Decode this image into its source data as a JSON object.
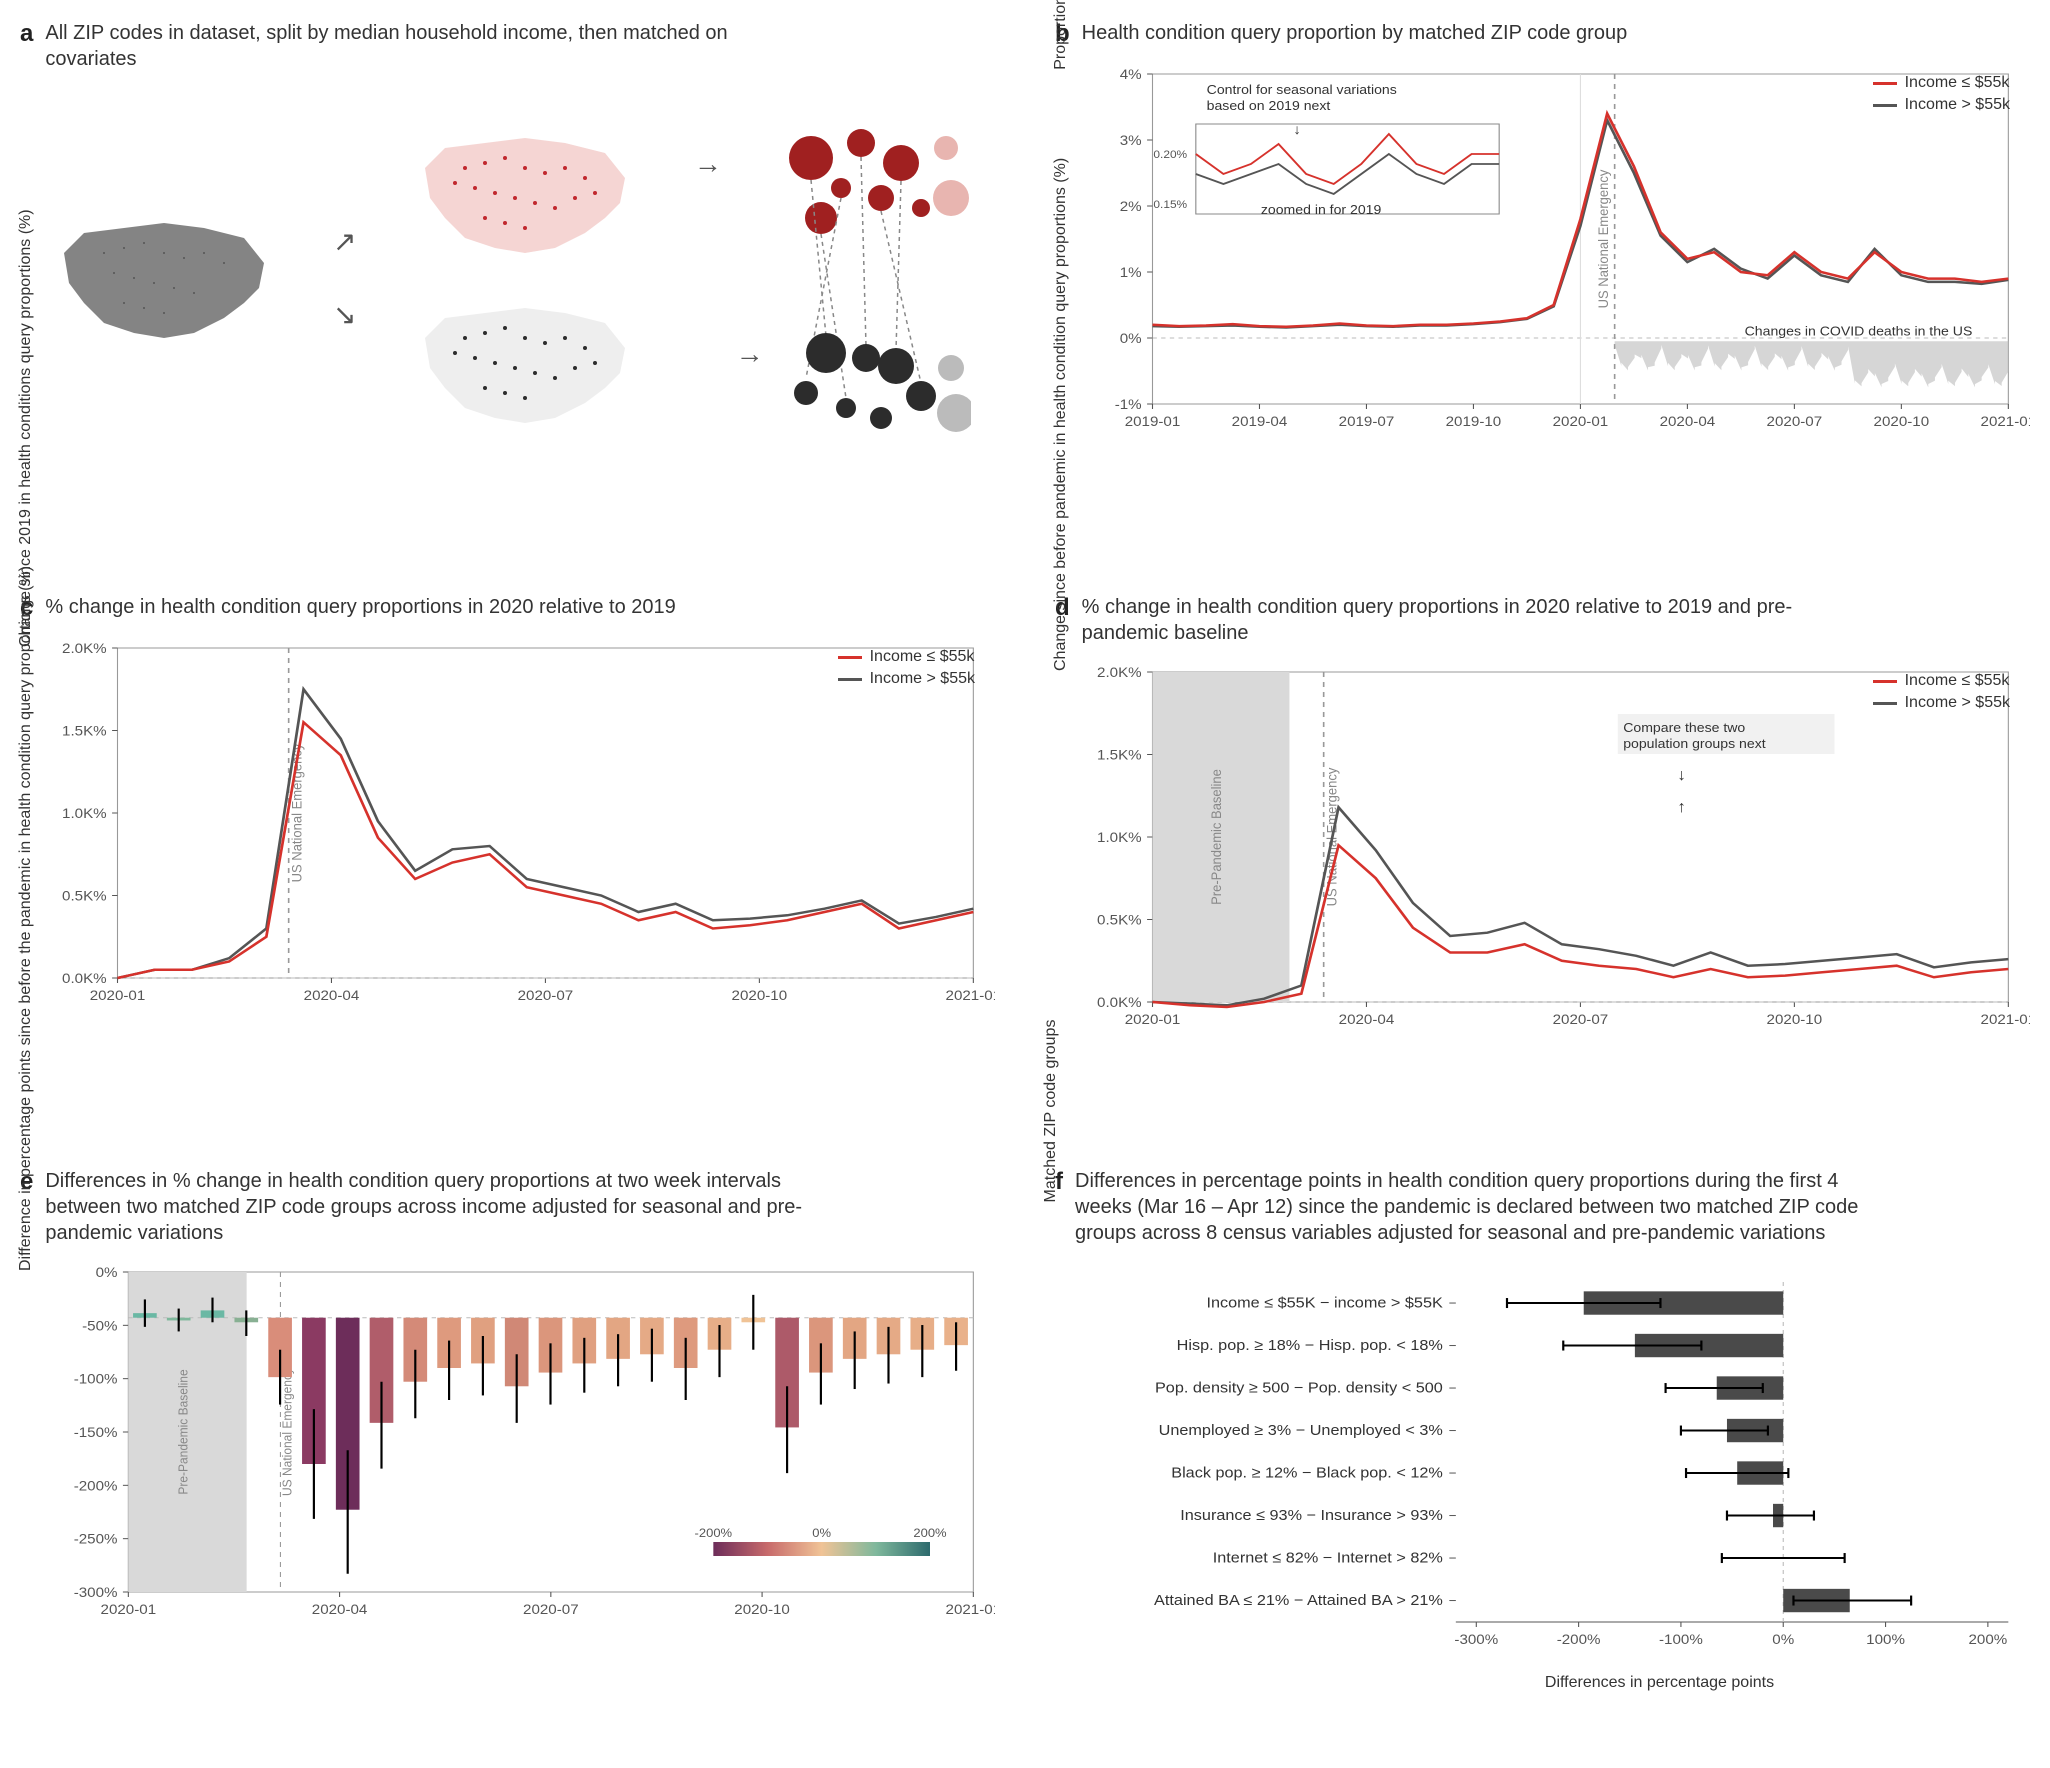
{
  "colors": {
    "red": "#d6322c",
    "gray": "#555555",
    "lightGray": "#cccccc",
    "gridline": "#e0e0e0",
    "dashed": "#aaaaaa",
    "band": "#d9d9d9",
    "axis": "#333333",
    "pink": "#e8b5b0",
    "darkGray": "#3a3a3a",
    "mapGray": "#777777",
    "mapRed": "#c1272d",
    "mapBlack": "#2c2c2c"
  },
  "legend": {
    "low": "Income ≤ $55k",
    "high": "Income > $55k"
  },
  "panelA": {
    "letter": "a",
    "title": "All ZIP codes in dataset, split by median household income, then matched on covariates"
  },
  "panelB": {
    "letter": "b",
    "title": "Health condition query proportion by matched ZIP code group",
    "ylabel": "Proportion of queries related to\nhealth conditions (%)",
    "yticks": [
      "-1%",
      "0%",
      "1%",
      "2%",
      "3%",
      "4%"
    ],
    "ylim": [
      -1,
      4
    ],
    "xticks": [
      "2019-01",
      "2019-04",
      "2019-07",
      "2019-10",
      "2020-01",
      "2020-04",
      "2020-07",
      "2020-10",
      "2021-01"
    ],
    "annotation1": "Control for seasonal variations\nbased on 2019 next",
    "annotation2": "zoomed in for 2019",
    "insetYticks": [
      "0.15%",
      "0.20%"
    ],
    "emergencyLabel": "US National Emergency",
    "deathsLabel": "Changes in COVID deaths in the US",
    "series": {
      "red": [
        0.2,
        0.18,
        0.19,
        0.21,
        0.18,
        0.17,
        0.19,
        0.22,
        0.19,
        0.18,
        0.2,
        0.2,
        0.22,
        0.25,
        0.3,
        0.5,
        1.8,
        3.4,
        2.6,
        1.6,
        1.2,
        1.3,
        1.0,
        0.95,
        1.3,
        1.0,
        0.9,
        1.3,
        1.0,
        0.9,
        0.9,
        0.85,
        0.9
      ],
      "gray": [
        0.18,
        0.17,
        0.18,
        0.19,
        0.17,
        0.16,
        0.18,
        0.2,
        0.18,
        0.17,
        0.19,
        0.19,
        0.21,
        0.24,
        0.29,
        0.48,
        1.7,
        3.3,
        2.5,
        1.55,
        1.15,
        1.35,
        1.05,
        0.9,
        1.25,
        0.95,
        0.85,
        1.35,
        0.95,
        0.85,
        0.85,
        0.82,
        0.88
      ]
    }
  },
  "panelC": {
    "letter": "c",
    "title": "% change in health condition query proportions in 2020 relative to 2019",
    "ylabel": "Change since 2019 in\nhealth conditions query proportions (%)",
    "yticks": [
      "0.0K%",
      "0.5K%",
      "1.0K%",
      "1.5K%",
      "2.0K%"
    ],
    "ylim": [
      0,
      2.0
    ],
    "xticks": [
      "2020-01",
      "2020-04",
      "2020-07",
      "2020-10",
      "2021-01"
    ],
    "emergencyLabel": "US National Emergency",
    "series": {
      "red": [
        0.0,
        0.05,
        0.05,
        0.1,
        0.25,
        1.55,
        1.35,
        0.85,
        0.6,
        0.7,
        0.75,
        0.55,
        0.5,
        0.45,
        0.35,
        0.4,
        0.3,
        0.32,
        0.35,
        0.4,
        0.45,
        0.3,
        0.35,
        0.4
      ],
      "gray": [
        0.0,
        0.05,
        0.05,
        0.12,
        0.3,
        1.75,
        1.45,
        0.95,
        0.65,
        0.78,
        0.8,
        0.6,
        0.55,
        0.5,
        0.4,
        0.45,
        0.35,
        0.36,
        0.38,
        0.42,
        0.47,
        0.33,
        0.37,
        0.42
      ]
    }
  },
  "panelD": {
    "letter": "d",
    "title": "% change in health condition query proportions in 2020 relative to 2019 and pre-pandemic baseline",
    "ylabel": "Change since before pandemic in\nhealth condition query proportions (%)",
    "yticks": [
      "0.0K%",
      "0.5K%",
      "1.0K%",
      "1.5K%",
      "2.0K%"
    ],
    "ylim": [
      0,
      2.0
    ],
    "xticks": [
      "2020-01",
      "2020-04",
      "2020-07",
      "2020-10",
      "2021-01"
    ],
    "emergencyLabel": "US National Emergency",
    "baselineLabel": "Pre-Pandemic Baseline",
    "annotation": "Compare these two\npopulation groups next",
    "series": {
      "red": [
        0.0,
        -0.02,
        -0.03,
        0.0,
        0.05,
        0.95,
        0.75,
        0.45,
        0.3,
        0.3,
        0.35,
        0.25,
        0.22,
        0.2,
        0.15,
        0.2,
        0.15,
        0.16,
        0.18,
        0.2,
        0.22,
        0.15,
        0.18,
        0.2
      ],
      "gray": [
        0.0,
        -0.01,
        -0.02,
        0.02,
        0.1,
        1.18,
        0.92,
        0.6,
        0.4,
        0.42,
        0.48,
        0.35,
        0.32,
        0.28,
        0.22,
        0.3,
        0.22,
        0.23,
        0.25,
        0.27,
        0.29,
        0.21,
        0.24,
        0.26
      ]
    }
  },
  "panelE": {
    "letter": "e",
    "title": "Differences in % change in health condition query proportions at two week intervals between two matched ZIP code groups across income adjusted for seasonal and pre-pandemic variations",
    "ylabel": "Difference in percentage points\nsince before the pandemic\nin health condition query proportions (%)",
    "yticks": [
      "-300%",
      "-250%",
      "-200%",
      "-150%",
      "-100%",
      "-50%",
      "0%"
    ],
    "ylim": [
      -300,
      50
    ],
    "xticks": [
      "2020-01",
      "2020-04",
      "2020-07",
      "2020-10",
      "2021-01"
    ],
    "emergencyLabel": "US National Emergency",
    "baselineLabel": "Pre-Pandemic Baseline",
    "colorbarTicks": [
      "-200%",
      "0%",
      "200%"
    ],
    "bars": [
      {
        "x": 0,
        "val": 5,
        "lo": -10,
        "hi": 20,
        "color": "#6ab8a4"
      },
      {
        "x": 1,
        "val": -3,
        "lo": -15,
        "hi": 10,
        "color": "#7fb89c"
      },
      {
        "x": 2,
        "val": 8,
        "lo": -5,
        "hi": 22,
        "color": "#6ab8a4"
      },
      {
        "x": 3,
        "val": -5,
        "lo": -20,
        "hi": 8,
        "color": "#88b093"
      },
      {
        "x": 4,
        "val": -65,
        "lo": -95,
        "hi": -35,
        "color": "#d98d7a"
      },
      {
        "x": 5,
        "val": -160,
        "lo": -220,
        "hi": -100,
        "color": "#8b3a62"
      },
      {
        "x": 6,
        "val": -210,
        "lo": -280,
        "hi": -145,
        "color": "#6d2d5a"
      },
      {
        "x": 7,
        "val": -115,
        "lo": -165,
        "hi": -70,
        "color": "#b05d6a"
      },
      {
        "x": 8,
        "val": -70,
        "lo": -110,
        "hi": -35,
        "color": "#d48a78"
      },
      {
        "x": 9,
        "val": -55,
        "lo": -90,
        "hi": -25,
        "color": "#de9a7e"
      },
      {
        "x": 10,
        "val": -50,
        "lo": -85,
        "hi": -20,
        "color": "#e0a080"
      },
      {
        "x": 11,
        "val": -75,
        "lo": -115,
        "hi": -40,
        "color": "#d08876"
      },
      {
        "x": 12,
        "val": -60,
        "lo": -95,
        "hi": -28,
        "color": "#db967c"
      },
      {
        "x": 13,
        "val": -50,
        "lo": -82,
        "hi": -22,
        "color": "#e0a080"
      },
      {
        "x": 14,
        "val": -45,
        "lo": -75,
        "hi": -18,
        "color": "#e3a683"
      },
      {
        "x": 15,
        "val": -40,
        "lo": -70,
        "hi": -12,
        "color": "#e5aa86"
      },
      {
        "x": 16,
        "val": -55,
        "lo": -90,
        "hi": -22,
        "color": "#de9a7e"
      },
      {
        "x": 17,
        "val": -35,
        "lo": -65,
        "hi": -8,
        "color": "#e7ae88"
      },
      {
        "x": 18,
        "val": -5,
        "lo": -35,
        "hi": 25,
        "color": "#f0c396"
      },
      {
        "x": 19,
        "val": -120,
        "lo": -170,
        "hi": -75,
        "color": "#ad5a69"
      },
      {
        "x": 20,
        "val": -60,
        "lo": -95,
        "hi": -28,
        "color": "#db967c"
      },
      {
        "x": 21,
        "val": -45,
        "lo": -78,
        "hi": -15,
        "color": "#e3a683"
      },
      {
        "x": 22,
        "val": -40,
        "lo": -72,
        "hi": -10,
        "color": "#e5aa86"
      },
      {
        "x": 23,
        "val": -35,
        "lo": -65,
        "hi": -8,
        "color": "#e7ae88"
      },
      {
        "x": 24,
        "val": -30,
        "lo": -58,
        "hi": -5,
        "color": "#e9b18a"
      }
    ]
  },
  "panelF": {
    "letter": "f",
    "title": "Differences in percentage points in health condition query proportions during the first 4 weeks (Mar 16 – Apr 12) since the pandemic is declared between two matched ZIP code groups across 8 census variables adjusted for seasonal and pre-pandemic variations",
    "xlabel": "Differences in percentage points",
    "ylabel": "Matched ZIP code groups",
    "xticks": [
      "-300%",
      "-200%",
      "-100%",
      "0%",
      "100%",
      "200%"
    ],
    "xlim": [
      -320,
      220
    ],
    "categories": [
      {
        "label": "Income ≤ $55K − income > $55K",
        "val": -195,
        "lo": -270,
        "hi": -120
      },
      {
        "label": "Hisp. pop. ≥ 18% − Hisp. pop. < 18%",
        "val": -145,
        "lo": -215,
        "hi": -80
      },
      {
        "label": "Pop. density ≥ 500 − Pop. density < 500",
        "val": -65,
        "lo": -115,
        "hi": -20
      },
      {
        "label": "Unemployed ≥ 3% − Unemployed < 3%",
        "val": -55,
        "lo": -100,
        "hi": -15
      },
      {
        "label": "Black pop. ≥ 12% − Black pop. < 12%",
        "val": -45,
        "lo": -95,
        "hi": 5
      },
      {
        "label": "Insurance ≤ 93% − Insurance > 93%",
        "val": -10,
        "lo": -55,
        "hi": 30
      },
      {
        "label": "Internet ≤ 82% − Internet > 82%",
        "val": 0,
        "lo": -60,
        "hi": 60
      },
      {
        "label": "Attained BA ≤ 21% − Attained BA > 21%",
        "val": 65,
        "lo": 10,
        "hi": 125
      }
    ]
  }
}
